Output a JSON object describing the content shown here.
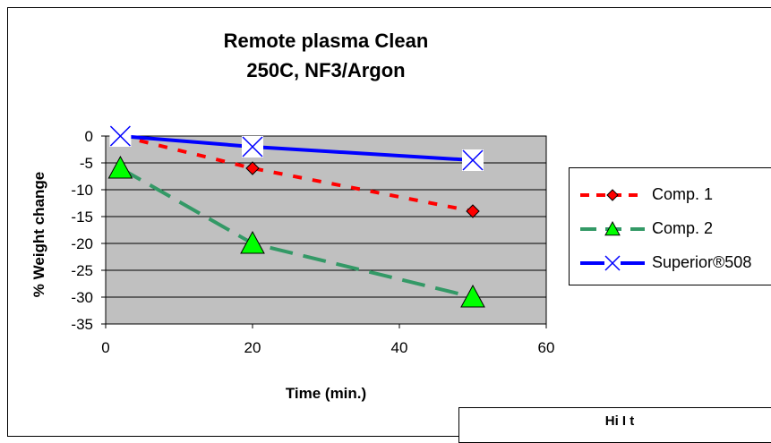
{
  "chart_data": {
    "type": "line",
    "title_lines": [
      "Remote plasma Clean",
      "250C, NF3/Argon"
    ],
    "xlabel": "Time (min.)",
    "ylabel": "% Weight change",
    "xlim": [
      0,
      60
    ],
    "ylim": [
      -35,
      0
    ],
    "xticks": [
      0,
      20,
      40,
      60
    ],
    "yticks": [
      0,
      -5,
      -10,
      -15,
      -20,
      -25,
      -30,
      -35
    ],
    "grid": true,
    "plot_background": "#c0c0c0",
    "legend_position": "right",
    "series": [
      {
        "name": "Comp. 1",
        "color": "#ff0000",
        "line_style": "dashed",
        "marker": "diamond",
        "marker_fill": "#ff0000",
        "x": [
          2,
          20,
          50
        ],
        "y": [
          0,
          -6,
          -14
        ]
      },
      {
        "name": "Comp. 2",
        "color": "#339966",
        "line_style": "long-dashed",
        "marker": "triangle",
        "marker_fill": "#00ff00",
        "x": [
          2,
          20,
          50
        ],
        "y": [
          -6,
          -20,
          -30
        ]
      },
      {
        "name": "Superior®508",
        "color": "#0000ff",
        "line_style": "solid",
        "marker": "x",
        "marker_fill": "#0000ff",
        "x": [
          2,
          20,
          50
        ],
        "y": [
          0,
          -2,
          -4.5
        ]
      }
    ]
  },
  "partial_box": {
    "text": "Hi I t"
  }
}
